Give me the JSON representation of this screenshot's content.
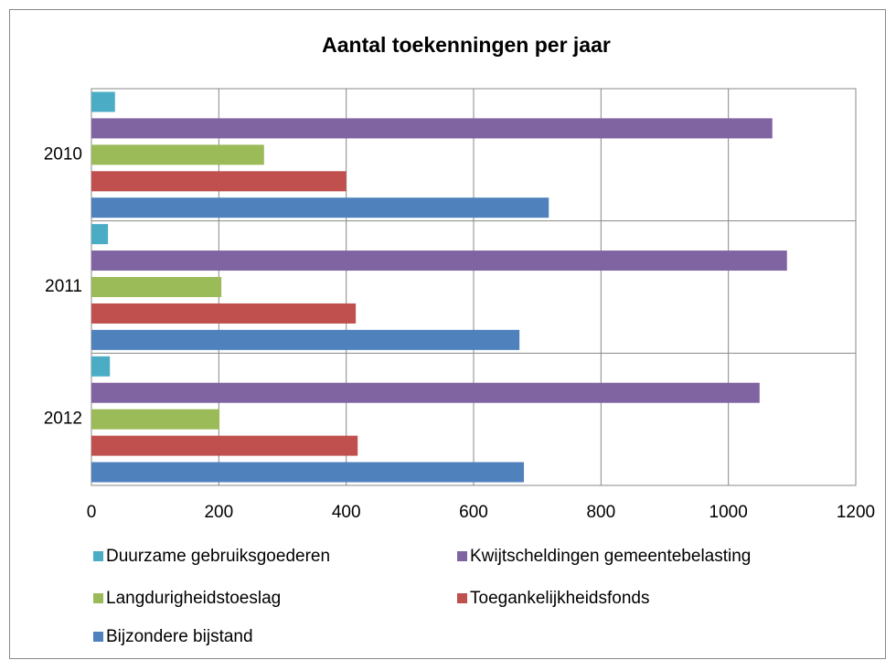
{
  "chart_data": {
    "type": "hbar",
    "title": "Aantal toekenningen per jaar",
    "categories": [
      "2010",
      "2011",
      "2012"
    ],
    "series": [
      {
        "name": "Duurzame gebruiksgoederen",
        "color": "#4bacc6",
        "values": [
          37,
          26,
          29
        ]
      },
      {
        "name": "Kwijtscheldingen gemeentebelasting",
        "color": "#8064a2",
        "values": [
          1069,
          1092,
          1049
        ]
      },
      {
        "name": "Langdurigheidstoeslag",
        "color": "#9bbb59",
        "values": [
          271,
          204,
          201
        ]
      },
      {
        "name": "Toegankelijkheidsfonds",
        "color": "#c0504d",
        "values": [
          400,
          415,
          418
        ]
      },
      {
        "name": "Bijzondere bijstand",
        "color": "#4f81bd",
        "values": [
          718,
          672,
          679
        ]
      }
    ],
    "xlim": [
      0,
      1200
    ],
    "xticks": [
      0,
      200,
      400,
      600,
      800,
      1000,
      1200
    ],
    "grid": true,
    "legend": "bottom"
  }
}
